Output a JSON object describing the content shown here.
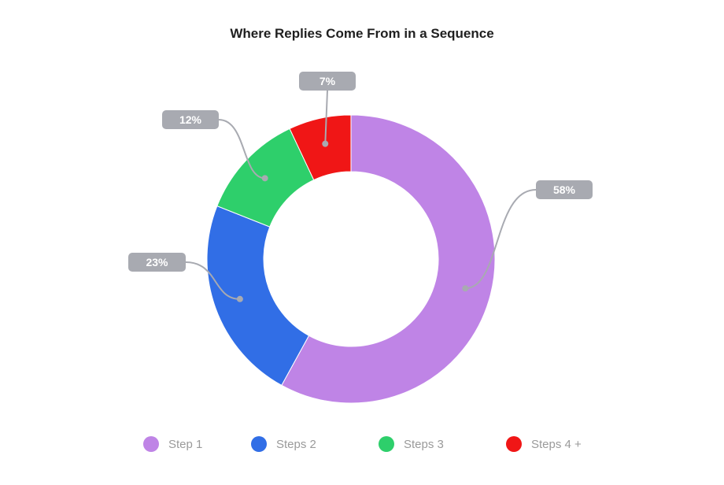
{
  "chart_data": {
    "type": "pie",
    "title": "Where Replies Come From in a Sequence",
    "donut": true,
    "slices": [
      {
        "label": "Step 1",
        "value": 58,
        "display": "58%",
        "color": "#bf84e6"
      },
      {
        "label": "Steps 2",
        "value": 23,
        "display": "23%",
        "color": "#316ee6"
      },
      {
        "label": "Steps 3",
        "value": 12,
        "display": "12%",
        "color": "#2ecf6b"
      },
      {
        "label": "Steps 4 +",
        "value": 7,
        "display": "7%",
        "color": "#f01616"
      }
    ],
    "legend_position": "bottom"
  },
  "colors": {
    "label_bg": "#a8aab1",
    "label_text": "#ffffff",
    "leader_line": "#a8aab1"
  }
}
